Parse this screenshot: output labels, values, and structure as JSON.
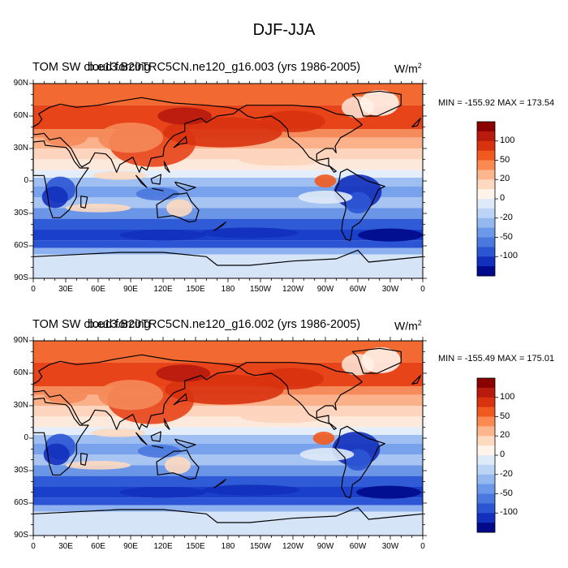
{
  "page": {
    "title": "DJF-JJA"
  },
  "panels": [
    {
      "case_label": "b.e13.B20TRC5CN.ne120_g16.003 (yrs 1986-2005)",
      "overlap_label": "TOM SW cloud forcing",
      "units_base": "W/m",
      "units_exp": "2",
      "minmax": "MIN = -155.92 MAX = 173.54"
    },
    {
      "case_label": "b.e13.B20TRC5CN.ne120_g16.002 (yrs 1986-2005)",
      "overlap_label": "TOM SW cloud forcing",
      "units_base": "W/m",
      "units_exp": "2",
      "minmax": "MIN = -155.49 MAX = 175.01"
    }
  ],
  "axes": {
    "lat_labels": [
      "90N",
      "60N",
      "30N",
      "0",
      "30S",
      "60S",
      "90S"
    ],
    "lon_labels": [
      "0",
      "30E",
      "60E",
      "90E",
      "120E",
      "150E",
      "180",
      "150W",
      "120W",
      "90W",
      "60W",
      "30W",
      "0"
    ]
  },
  "colorbar": {
    "labels": [
      "100",
      "50",
      "20",
      "0",
      "-20",
      "-50",
      "-100"
    ],
    "colors": [
      "#8b0000",
      "#b81a0d",
      "#d8320f",
      "#f05a1e",
      "#fb8a52",
      "#fdb58d",
      "#fdd9c0",
      "#fff3ea",
      "#dfeaf8",
      "#bcd4f5",
      "#94b8f0",
      "#6b98e8",
      "#4a78de",
      "#2c55d4",
      "#1230bd",
      "#000a8a"
    ]
  }
}
